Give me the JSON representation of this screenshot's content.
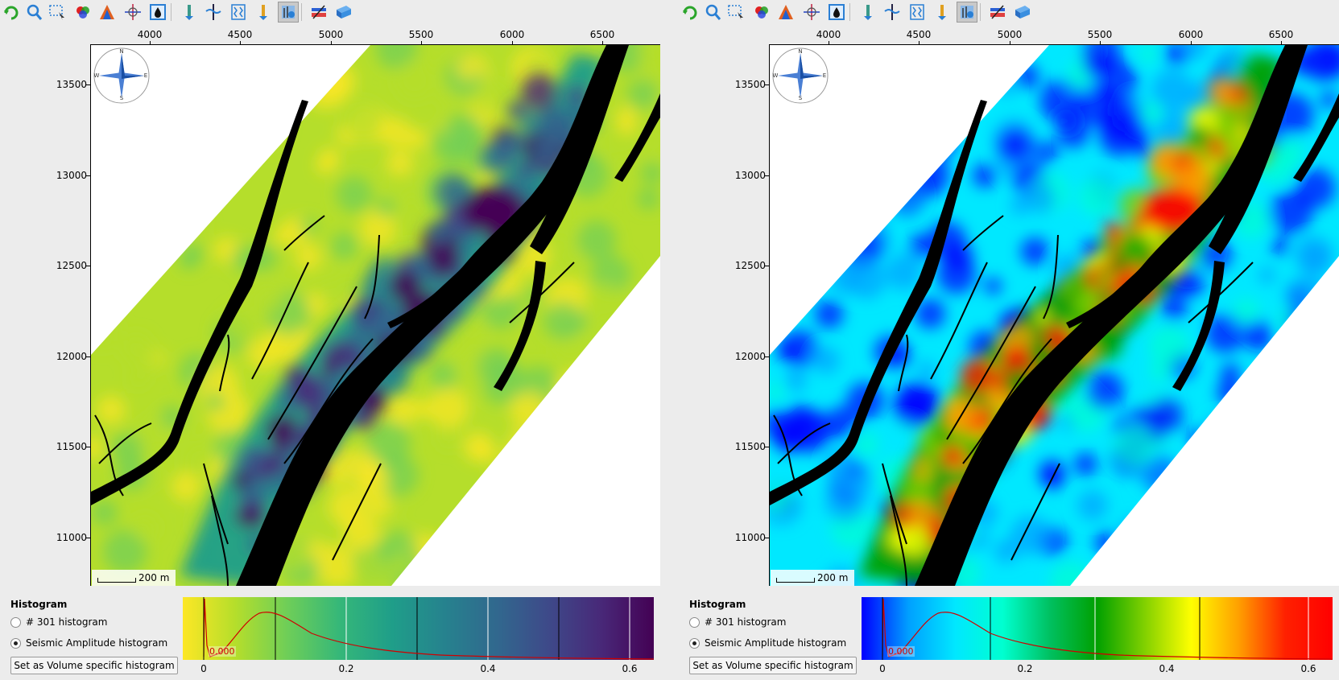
{
  "toolbar": {
    "icons": [
      "refresh-icon",
      "zoom-icon",
      "select-region-icon",
      "color-wheel-icon",
      "color-spectrum-icon",
      "crosshair-icon",
      "data-inspect-icon",
      "well-icon",
      "horizon-pick-icon",
      "log-display-icon",
      "well-log-icon",
      "map-layer-icon",
      "fault-icon",
      "seismic-volume-icon"
    ]
  },
  "colors": {
    "viridis": [
      "#fde725",
      "#b5de2b",
      "#6ece58",
      "#35b779",
      "#1f9e89",
      "#26828e",
      "#31688e",
      "#3e4989",
      "#482878",
      "#440154"
    ],
    "rainbow": [
      "#0000ff",
      "#00a0ff",
      "#00e8ff",
      "#00ffd0",
      "#00c060",
      "#00a000",
      "#80d000",
      "#ffff00",
      "#ffa000",
      "#ff2000",
      "#ff0000"
    ],
    "fault": "#000000",
    "histogram_curve": "#d00000"
  },
  "panels": [
    {
      "colormap": "viridis",
      "x_ticks": [
        "4000",
        "4500",
        "5000",
        "5500",
        "6000",
        "6500"
      ],
      "y_ticks": [
        "13500",
        "13000",
        "12500",
        "12000",
        "11500",
        "11000"
      ],
      "scale_label": "200 m",
      "histogram": {
        "title": "Histogram",
        "options": [
          "# 301 histogram",
          "Seismic Amplitude histogram"
        ],
        "selected": 1,
        "button": "Set as Volume specific histogram",
        "ticks": [
          "0",
          "0.2",
          "0.4",
          "0.6"
        ],
        "value_label": "0.000"
      }
    },
    {
      "colormap": "rainbow",
      "x_ticks": [
        "4000",
        "4500",
        "5000",
        "5500",
        "6000",
        "6500"
      ],
      "y_ticks": [
        "13500",
        "13000",
        "12500",
        "12000",
        "11500",
        "11000"
      ],
      "scale_label": "200 m",
      "histogram": {
        "title": "Histogram",
        "options": [
          "# 301 histogram",
          "Seismic Amplitude histogram"
        ],
        "selected": 1,
        "button": "Set as Volume specific histogram",
        "ticks": [
          "0",
          "0.2",
          "0.4",
          "0.6"
        ],
        "value_label": "0.000"
      }
    }
  ],
  "compass": {
    "n": "N",
    "s": "S",
    "e": "E",
    "w": "W"
  }
}
